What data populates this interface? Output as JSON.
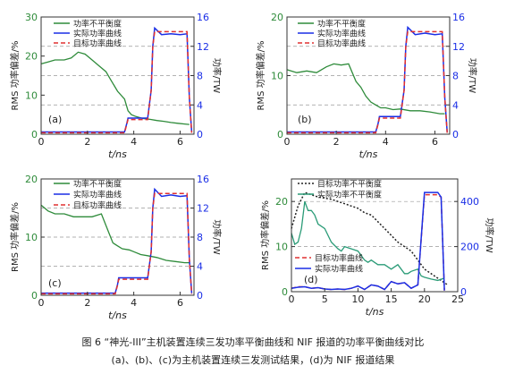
{
  "caption": {
    "line1": "图 6   “神光-III”主机装置连续三发功率平衡曲线和 NIF 报道的功率平衡曲线对比",
    "line2": "(a)、(b)、(c)为主机装置连续三发测试结果，(d)为 NIF 报道结果"
  },
  "colors": {
    "green": "#2e8b3a",
    "blue": "#1a2ee6",
    "red": "#e03030",
    "black": "#222222",
    "teal": "#2a9b77",
    "grid": "#999999"
  },
  "chart_data": [
    {
      "id": "a",
      "type": "line",
      "panel_label": "(a)",
      "xlabel": "t/ns",
      "ylabel_left": "RMS 功率偏差/%",
      "ylabel_right": "功率/TW",
      "xlim": [
        0,
        6.6
      ],
      "xticks": [
        0,
        2,
        4,
        6
      ],
      "ylim_left": [
        0,
        30
      ],
      "yticks_left": [
        0,
        10,
        20,
        30
      ],
      "ylim_right": [
        0,
        16
      ],
      "yticks_right": [
        0,
        4,
        8,
        12,
        16
      ],
      "legend": [
        "功率不平衡度",
        "实际功率曲线",
        "目标功率曲线"
      ],
      "series": [
        {
          "name": "功率不平衡度",
          "axis": "left",
          "color": "green",
          "dash": "solid",
          "x": [
            0,
            0.3,
            0.6,
            1.0,
            1.3,
            1.6,
            1.9,
            2.2,
            2.5,
            2.8,
            3.0,
            3.3,
            3.6,
            3.75,
            3.9,
            4.1,
            4.4,
            4.7,
            5.0,
            5.3,
            5.6,
            5.9,
            6.2,
            6.4
          ],
          "y": [
            18,
            18.5,
            19,
            19,
            19.5,
            21,
            20.5,
            19,
            17.5,
            16,
            14,
            11,
            9,
            6,
            5,
            4.5,
            4,
            3.8,
            3.5,
            3.3,
            3,
            2.8,
            2.6,
            2.5
          ]
        },
        {
          "name": "实际功率曲线",
          "axis": "right",
          "color": "blue",
          "dash": "solid",
          "x": [
            0,
            3.6,
            3.7,
            3.75,
            4.6,
            4.75,
            4.82,
            4.9,
            5.2,
            5.6,
            6.0,
            6.3,
            6.4,
            6.5
          ],
          "y": [
            0.3,
            0.3,
            1.5,
            2.2,
            2.2,
            6,
            12,
            14.5,
            13.6,
            13.7,
            13.6,
            13.7,
            5,
            0.3
          ]
        },
        {
          "name": "目标功率曲线",
          "axis": "right",
          "color": "red",
          "dash": "dashed",
          "x": [
            0,
            3.6,
            3.7,
            3.75,
            4.6,
            4.75,
            4.82,
            4.9,
            5.2,
            5.6,
            6.0,
            6.3,
            6.4,
            6.5
          ],
          "y": [
            0.2,
            0.2,
            1.4,
            2.0,
            2.0,
            6,
            12,
            14.0,
            14.0,
            14.0,
            14.0,
            14.0,
            5,
            0.2
          ]
        }
      ]
    },
    {
      "id": "b",
      "type": "line",
      "panel_label": "(b)",
      "xlabel": "t/ns",
      "ylabel_left": "RMS 功率偏差/%",
      "ylabel_right": "功率/TW",
      "xlim": [
        0,
        6.6
      ],
      "xticks": [
        0,
        2,
        4,
        6
      ],
      "ylim_left": [
        0,
        20
      ],
      "yticks_left": [
        0,
        10,
        20
      ],
      "ylim_right": [
        0,
        16
      ],
      "yticks_right": [
        0,
        4,
        8,
        12,
        16
      ],
      "legend": [
        "功率不平衡度",
        "实际功率曲线",
        "目标功率曲线"
      ],
      "series": [
        {
          "name": "功率不平衡度",
          "axis": "left",
          "color": "green",
          "dash": "solid",
          "x": [
            0,
            0.4,
            0.8,
            1.2,
            1.6,
            1.9,
            2.2,
            2.5,
            2.8,
            3.0,
            3.2,
            3.4,
            3.6,
            3.8,
            4.0,
            4.3,
            4.6,
            5.0,
            5.4,
            5.8,
            6.2,
            6.4
          ],
          "y": [
            11,
            10.5,
            10.8,
            10.5,
            11.5,
            12,
            11.8,
            12,
            9,
            8,
            6.5,
            5.5,
            5,
            4.5,
            4.5,
            4.2,
            4.3,
            4,
            4,
            3.8,
            3.5,
            3.5
          ]
        },
        {
          "name": "实际功率曲线",
          "axis": "right",
          "color": "blue",
          "dash": "solid",
          "x": [
            0,
            3.6,
            3.7,
            3.75,
            4.6,
            4.75,
            4.82,
            4.9,
            5.2,
            5.6,
            6.0,
            6.3,
            6.4,
            6.5
          ],
          "y": [
            0.3,
            0.3,
            1.5,
            2.4,
            2.4,
            6,
            12,
            14.6,
            13.6,
            13.8,
            13.6,
            13.7,
            5,
            0.3
          ]
        },
        {
          "name": "目标功率曲线",
          "axis": "right",
          "color": "red",
          "dash": "dashed",
          "x": [
            0,
            3.6,
            3.7,
            3.75,
            4.6,
            4.75,
            4.82,
            4.9,
            5.2,
            5.6,
            6.0,
            6.3,
            6.4,
            6.5
          ],
          "y": [
            0.2,
            0.2,
            1.4,
            2.2,
            2.2,
            6,
            12,
            14.0,
            14.0,
            14.0,
            14.0,
            14.0,
            5,
            0.2
          ]
        }
      ]
    },
    {
      "id": "c",
      "type": "line",
      "panel_label": "(c)",
      "xlabel": "t/ns",
      "ylabel_left": "RMS 功率偏差/%",
      "ylabel_right": "功率/TW",
      "xlim": [
        0,
        6.6
      ],
      "xticks": [
        0,
        2,
        4,
        6
      ],
      "ylim_left": [
        0,
        20
      ],
      "yticks_left": [
        0,
        10,
        20
      ],
      "ylim_right": [
        0,
        16
      ],
      "yticks_right": [
        0,
        4,
        8,
        12,
        16
      ],
      "legend": [
        "功率不平衡度",
        "实际功率曲线",
        "目标功率曲线"
      ],
      "series": [
        {
          "name": "功率不平衡度",
          "axis": "left",
          "color": "green",
          "dash": "solid",
          "x": [
            0,
            0.3,
            0.6,
            1.0,
            1.4,
            1.8,
            2.2,
            2.6,
            2.9,
            3.1,
            3.3,
            3.5,
            3.8,
            4.0,
            4.3,
            4.6,
            5.0,
            5.4,
            5.8,
            6.2,
            6.4
          ],
          "y": [
            15.5,
            14.5,
            14,
            14,
            13.5,
            13.5,
            13.5,
            14,
            11,
            9,
            8.5,
            8,
            7.8,
            7.5,
            7,
            6.8,
            6.5,
            6,
            5.8,
            5.6,
            5.6
          ]
        },
        {
          "name": "实际功率曲线",
          "axis": "right",
          "color": "blue",
          "dash": "solid",
          "x": [
            0,
            3.2,
            3.3,
            3.35,
            4.6,
            4.75,
            4.82,
            4.9,
            5.2,
            5.6,
            6.0,
            6.3,
            6.4,
            6.5
          ],
          "y": [
            0.3,
            0.3,
            1.5,
            2.4,
            2.4,
            6,
            12,
            14.6,
            13.6,
            13.8,
            13.6,
            13.7,
            5,
            0.3
          ]
        },
        {
          "name": "目标功率曲线",
          "axis": "right",
          "color": "red",
          "dash": "dashed",
          "x": [
            0,
            3.2,
            3.3,
            3.35,
            4.6,
            4.75,
            4.82,
            4.9,
            5.2,
            5.6,
            6.0,
            6.3,
            6.4,
            6.5
          ],
          "y": [
            0.2,
            0.2,
            1.4,
            2.2,
            2.2,
            6,
            12,
            14.0,
            14.0,
            14.0,
            14.0,
            14.0,
            5,
            0.2
          ]
        }
      ]
    },
    {
      "id": "d",
      "type": "line",
      "panel_label": "(d)",
      "xlabel": "t/ns",
      "ylabel_left": "RMS 功率偏差/%",
      "ylabel_right": "功率/TW",
      "xlim": [
        0,
        25
      ],
      "xticks": [
        0,
        5,
        10,
        15,
        20,
        25
      ],
      "ylim_left": [
        0,
        25
      ],
      "yticks_left": [
        0,
        10,
        20
      ],
      "ylim_right": [
        0,
        500
      ],
      "yticks_right": [
        0,
        200,
        400
      ],
      "legend": [
        "目标功率不平衡度",
        "实际功率不平衡度",
        "目标功率曲线",
        "实际功率曲线"
      ],
      "series": [
        {
          "name": "目标功率不平衡度",
          "axis": "left",
          "color": "black",
          "dash": "dotted",
          "x": [
            0,
            1,
            2,
            4,
            6,
            8,
            10,
            11,
            12,
            14,
            16,
            18,
            19,
            20,
            21,
            22,
            23,
            23.5
          ],
          "y": [
            14,
            19,
            22,
            21,
            20.5,
            19.5,
            18.5,
            17.5,
            17,
            14,
            11,
            9,
            7,
            5,
            4,
            3,
            2,
            1.5
          ]
        },
        {
          "name": "实际功率不平衡度",
          "axis": "left",
          "color": "teal",
          "dash": "solid",
          "x": [
            0,
            0.5,
            1,
            1.5,
            2,
            2.5,
            3,
            3.5,
            4,
            5,
            6,
            7,
            7.5,
            8,
            9,
            10,
            11,
            11.5,
            12,
            13,
            14,
            15,
            16,
            17,
            17.5,
            18,
            19,
            19.5,
            20,
            21,
            22,
            23
          ],
          "y": [
            13,
            10.5,
            11,
            14,
            20,
            18,
            18,
            17,
            15,
            14,
            11,
            9.5,
            9,
            10,
            9.5,
            9,
            7,
            6.5,
            7,
            6,
            6,
            5,
            6,
            4,
            4,
            4.5,
            5,
            3.5,
            3.2,
            2.8,
            2.5,
            3
          ]
        },
        {
          "name": "目标功率曲线",
          "axis": "right",
          "color": "red",
          "dash": "dashed",
          "x": [
            0,
            1,
            2,
            3,
            4,
            5,
            6,
            7,
            8,
            9,
            10,
            11,
            12,
            13,
            14,
            15,
            16,
            17,
            18,
            19,
            20,
            20.5,
            22,
            22.5,
            23
          ],
          "y": [
            15,
            22,
            22,
            15,
            18,
            12,
            10,
            12,
            10,
            15,
            25,
            10,
            30,
            25,
            10,
            45,
            35,
            40,
            15,
            30,
            430,
            430,
            430,
            420,
            5
          ]
        },
        {
          "name": "实际功率曲线",
          "axis": "right",
          "color": "blue",
          "dash": "solid",
          "x": [
            0,
            1,
            2,
            3,
            4,
            5,
            6,
            7,
            8,
            9,
            10,
            11,
            12,
            13,
            14,
            15,
            16,
            17,
            18,
            19,
            20,
            20.5,
            22,
            22.5,
            23
          ],
          "y": [
            15,
            20,
            22,
            15,
            18,
            12,
            10,
            12,
            10,
            15,
            25,
            10,
            30,
            25,
            10,
            45,
            35,
            40,
            15,
            30,
            440,
            440,
            440,
            420,
            5
          ]
        }
      ]
    }
  ]
}
